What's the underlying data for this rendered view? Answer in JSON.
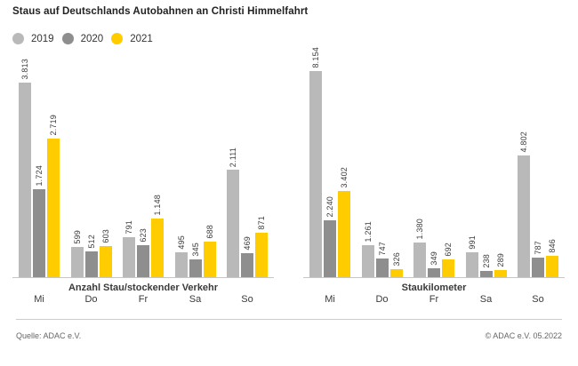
{
  "title": "Staus auf Deutschlands Autobahnen an Christi Himmelfahrt",
  "legend": [
    {
      "label": "2019",
      "color": "#b9b9b9"
    },
    {
      "label": "2020",
      "color": "#8e8e8e"
    },
    {
      "label": "2021",
      "color": "#ffcc00"
    }
  ],
  "footer": {
    "source": "Quelle: ADAC e.V.",
    "copyright": "© ADAC e.V. 05.2022"
  },
  "chart_data": [
    {
      "type": "bar",
      "title": "Anzahl Stau/stockender Verkehr",
      "categories": [
        "Mi",
        "Do",
        "Fr",
        "Sa",
        "So"
      ],
      "series": [
        {
          "name": "2019",
          "color": "#b9b9b9",
          "values": [
            3813,
            599,
            791,
            495,
            2111
          ],
          "labels": [
            "3.813",
            "599",
            "791",
            "495",
            "2.111"
          ]
        },
        {
          "name": "2020",
          "color": "#8e8e8e",
          "values": [
            1724,
            512,
            623,
            345,
            469
          ],
          "labels": [
            "1.724",
            "512",
            "623",
            "345",
            "469"
          ]
        },
        {
          "name": "2021",
          "color": "#ffcc00",
          "values": [
            2719,
            603,
            1148,
            688,
            871
          ],
          "labels": [
            "2.719",
            "603",
            "1.148",
            "688",
            "871"
          ]
        }
      ],
      "ylim": [
        0,
        3813
      ],
      "grid": false,
      "legend_position": "top-left",
      "value_labels": "rotated-90-above-bars"
    },
    {
      "type": "bar",
      "title": "Staukilometer",
      "categories": [
        "Mi",
        "Do",
        "Fr",
        "Sa",
        "So"
      ],
      "series": [
        {
          "name": "2019",
          "color": "#b9b9b9",
          "values": [
            8154,
            1261,
            1380,
            991,
            4802
          ],
          "labels": [
            "8.154",
            "1.261",
            "1.380",
            "991",
            "4.802"
          ]
        },
        {
          "name": "2020",
          "color": "#8e8e8e",
          "values": [
            2240,
            747,
            349,
            238,
            787
          ],
          "labels": [
            "2.240",
            "747",
            "349",
            "238",
            "787"
          ]
        },
        {
          "name": "2021",
          "color": "#ffcc00",
          "values": [
            3402,
            326,
            692,
            289,
            846
          ],
          "labels": [
            "3.402",
            "326",
            "692",
            "289",
            "846"
          ]
        }
      ],
      "ylim": [
        0,
        8154
      ],
      "grid": false,
      "legend_position": "top-left",
      "value_labels": "rotated-90-above-bars"
    }
  ]
}
